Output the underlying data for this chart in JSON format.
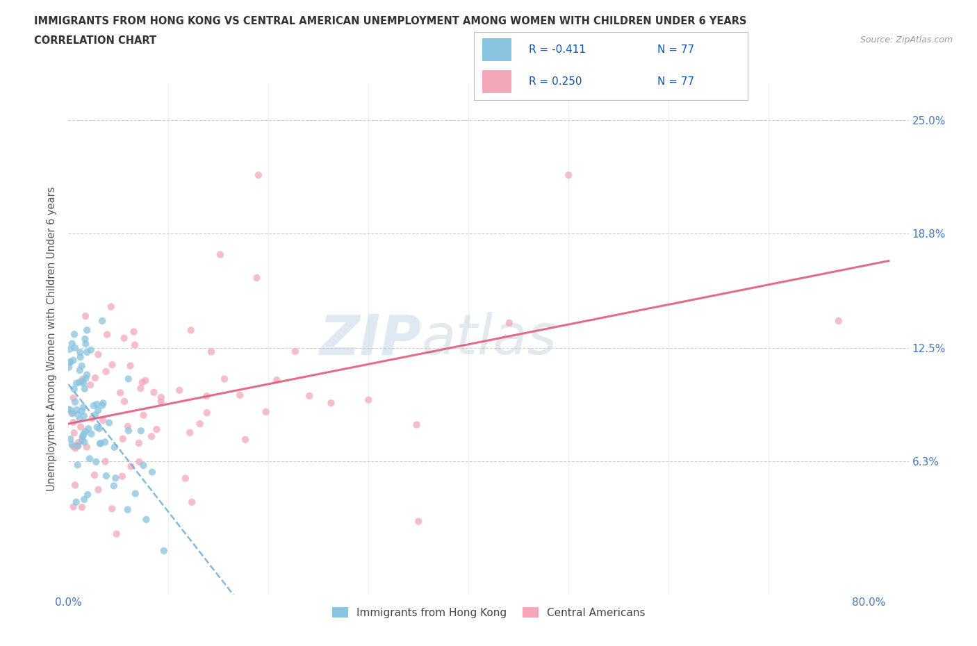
{
  "title_line1": "IMMIGRANTS FROM HONG KONG VS CENTRAL AMERICAN UNEMPLOYMENT AMONG WOMEN WITH CHILDREN UNDER 6 YEARS",
  "title_line2": "CORRELATION CHART",
  "source_text": "Source: ZipAtlas.com",
  "ylabel": "Unemployment Among Women with Children Under 6 years",
  "xlim": [
    0.0,
    0.84
  ],
  "ylim": [
    -0.01,
    0.27
  ],
  "watermark_zip": "ZIP",
  "watermark_atlas": "atlas",
  "legend_R1": "R = -0.411",
  "legend_N1": "N = 77",
  "legend_R2": "R = 0.250",
  "legend_N2": "N = 77",
  "legend_label1": "Immigrants from Hong Kong",
  "legend_label2": "Central Americans",
  "color_hk": "#89c4e1",
  "color_ca": "#f4a7b9",
  "color_hk_line": "#6baed6",
  "color_ca_line": "#e05c7a",
  "background": "#ffffff",
  "grid_color": "#d0d0d0",
  "title_color": "#333333",
  "tick_color": "#4477bb",
  "ylabel_color": "#555555"
}
